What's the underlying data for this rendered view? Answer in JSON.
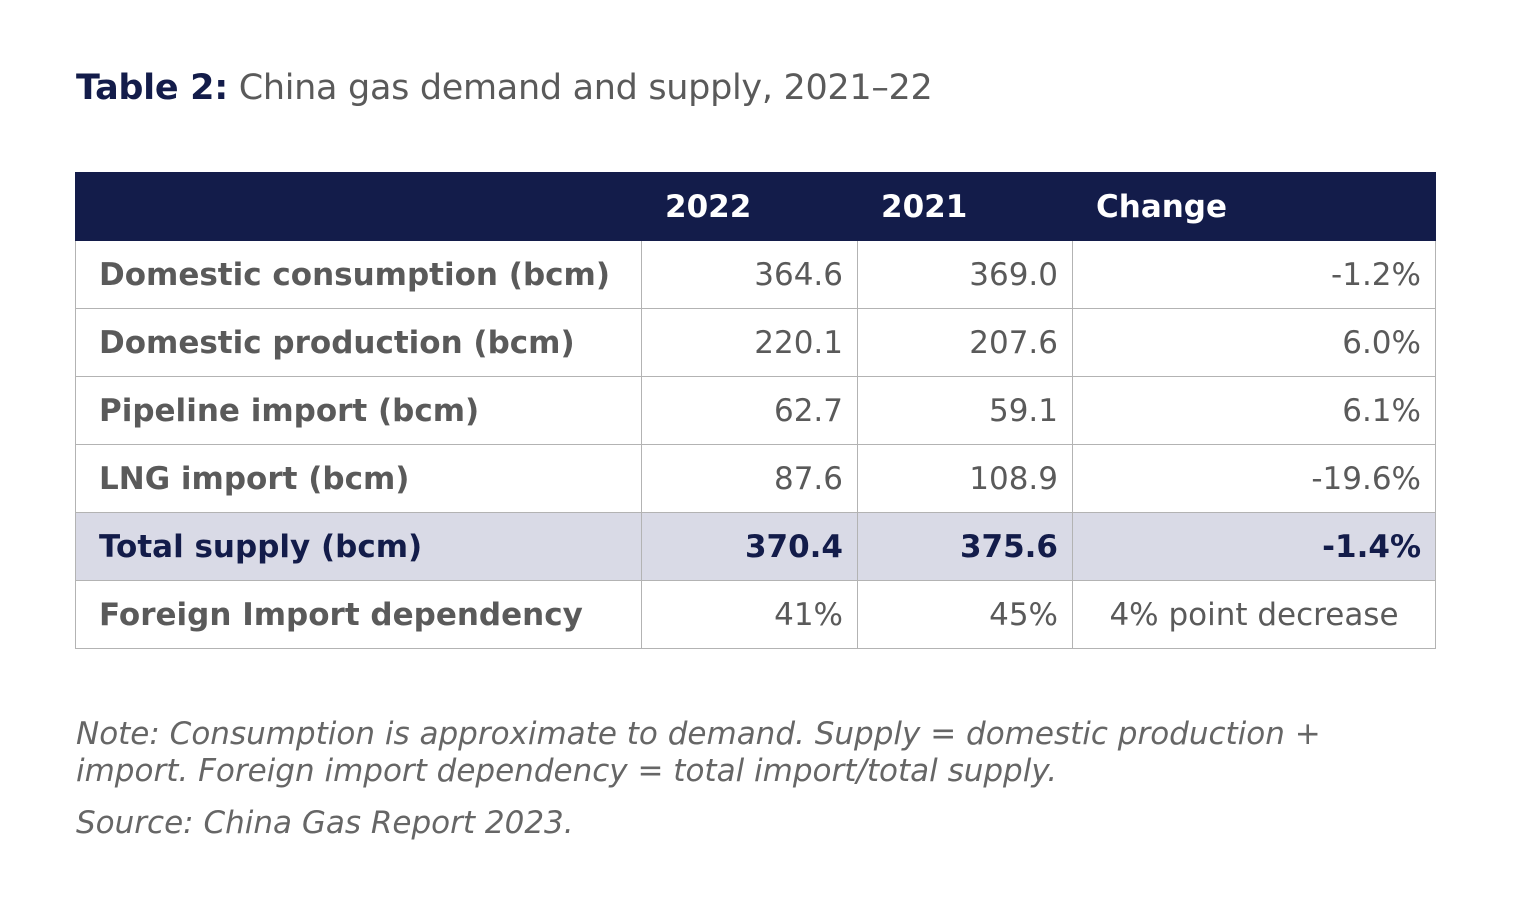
{
  "title": {
    "label": "Table 2:",
    "text": "China gas demand and supply, 2021–22"
  },
  "table": {
    "headers": [
      "",
      "2022",
      "2021",
      "Change"
    ],
    "rows": [
      {
        "label": "Domestic consumption (bcm)",
        "y2022": "364.6",
        "y2021": "369.0",
        "change": "-1.2%"
      },
      {
        "label": "Domestic production (bcm)",
        "y2022": "220.1",
        "y2021": "207.6",
        "change": "6.0%"
      },
      {
        "label": "Pipeline import (bcm)",
        "y2022": "62.7",
        "y2021": "59.1",
        "change": "6.1%"
      },
      {
        "label": "LNG import (bcm)",
        "y2022": "87.6",
        "y2021": "108.9",
        "change": "-19.6%"
      },
      {
        "label": "Total supply (bcm)",
        "y2022": "370.4",
        "y2021": "375.6",
        "change": "-1.4%"
      },
      {
        "label": "Foreign Import dependency",
        "y2022": "41%",
        "y2021": "45%",
        "change": "4% point decrease"
      }
    ]
  },
  "note": "Note: Consumption is approximate to demand. Supply = domestic production + import. Foreign import dependency = total import/total supply.",
  "source": "Source: China Gas Report 2023.",
  "colors": {
    "header_bg": "#131c4a",
    "total_row_bg": "#d9dae6",
    "border": "#b3b3b3"
  }
}
